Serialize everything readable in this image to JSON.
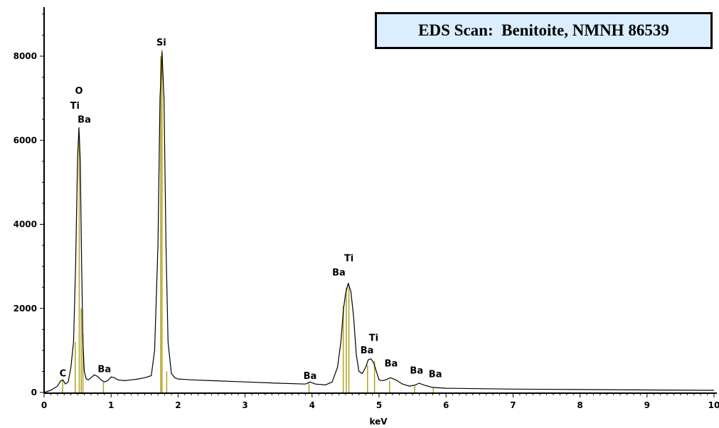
{
  "chart_data": {
    "type": "line",
    "title": "EDS Scan:  Benitoite, NMNH 86539",
    "xlabel": "keV",
    "ylabel": "",
    "xlim": [
      0,
      10
    ],
    "ylim": [
      0,
      9000
    ],
    "x_ticks": [
      "0",
      "1",
      "2",
      "3",
      "4",
      "5",
      "6",
      "7",
      "8",
      "9",
      "10"
    ],
    "y_ticks": [
      "0",
      "2000",
      "4000",
      "6000",
      "8000"
    ],
    "grid": false,
    "line_color": "#000000",
    "marker_color": "#b5a82a",
    "series": [
      {
        "x": [
          0.0,
          0.1,
          0.2,
          0.25,
          0.28,
          0.32,
          0.36,
          0.4,
          0.44,
          0.47,
          0.5,
          0.52,
          0.54,
          0.56,
          0.58,
          0.6,
          0.63,
          0.66,
          0.7,
          0.75,
          0.8,
          0.85,
          0.9,
          0.95,
          1.0,
          1.05,
          1.1,
          1.2,
          1.3,
          1.4,
          1.5,
          1.6,
          1.65,
          1.7,
          1.73,
          1.76,
          1.79,
          1.82,
          1.85,
          1.9,
          1.95,
          2.0,
          2.2,
          2.5,
          3.0,
          3.5,
          3.9,
          3.97,
          4.05,
          4.2,
          4.3,
          4.38,
          4.43,
          4.47,
          4.5,
          4.54,
          4.58,
          4.62,
          4.66,
          4.7,
          4.75,
          4.8,
          4.84,
          4.88,
          4.92,
          4.96,
          5.0,
          5.05,
          5.1,
          5.17,
          5.25,
          5.35,
          5.45,
          5.53,
          5.6,
          5.68,
          5.8,
          6.0,
          6.5,
          7.0,
          8.0,
          9.0,
          10.0
        ],
        "y": [
          0,
          50,
          150,
          280,
          300,
          200,
          250,
          600,
          1200,
          3000,
          5600,
          6300,
          5500,
          3000,
          1200,
          500,
          320,
          300,
          350,
          420,
          380,
          300,
          250,
          280,
          370,
          350,
          300,
          280,
          300,
          320,
          350,
          400,
          1000,
          3500,
          7000,
          8100,
          7000,
          3500,
          1200,
          450,
          350,
          320,
          300,
          280,
          250,
          220,
          200,
          250,
          200,
          180,
          250,
          600,
          1200,
          2000,
          2350,
          2600,
          2400,
          1800,
          900,
          500,
          450,
          600,
          780,
          800,
          700,
          500,
          300,
          280,
          300,
          350,
          300,
          200,
          150,
          170,
          220,
          170,
          120,
          100,
          90,
          80,
          70,
          60,
          50
        ]
      }
    ],
    "markers": [
      {
        "x": 0.277,
        "height": 300
      },
      {
        "x": 0.465,
        "height": 1200
      },
      {
        "x": 0.525,
        "height": 6100
      },
      {
        "x": 0.555,
        "height": 2000
      },
      {
        "x": 0.58,
        "height": 1400
      },
      {
        "x": 0.885,
        "height": 250
      },
      {
        "x": 1.74,
        "height": 8000
      },
      {
        "x": 1.76,
        "height": 8150
      },
      {
        "x": 1.83,
        "height": 500
      },
      {
        "x": 3.954,
        "height": 220
      },
      {
        "x": 4.466,
        "height": 2050
      },
      {
        "x": 4.51,
        "height": 2500
      },
      {
        "x": 4.55,
        "height": 2550
      },
      {
        "x": 4.828,
        "height": 650
      },
      {
        "x": 4.932,
        "height": 750
      },
      {
        "x": 5.157,
        "height": 280
      },
      {
        "x": 5.531,
        "height": 150
      },
      {
        "x": 5.81,
        "height": 120
      }
    ],
    "annotations": [
      {
        "text": "C",
        "x": 0.28,
        "y": 380
      },
      {
        "text": "O",
        "x": 0.52,
        "y": 7100
      },
      {
        "text": "Ti",
        "x": 0.46,
        "y": 6750
      },
      {
        "text": "Ba",
        "x": 0.6,
        "y": 6420
      },
      {
        "text": "Ba",
        "x": 0.9,
        "y": 480
      },
      {
        "text": "Si",
        "x": 1.75,
        "y": 8250
      },
      {
        "text": "Ba",
        "x": 3.97,
        "y": 320
      },
      {
        "text": "Ti",
        "x": 4.55,
        "y": 3120
      },
      {
        "text": "Ba",
        "x": 4.4,
        "y": 2780
      },
      {
        "text": "Ti",
        "x": 4.92,
        "y": 1230
      },
      {
        "text": "Ba",
        "x": 4.82,
        "y": 930
      },
      {
        "text": "Ba",
        "x": 5.18,
        "y": 620
      },
      {
        "text": "Ba",
        "x": 5.56,
        "y": 450
      },
      {
        "text": "Ba",
        "x": 5.84,
        "y": 360
      }
    ]
  }
}
